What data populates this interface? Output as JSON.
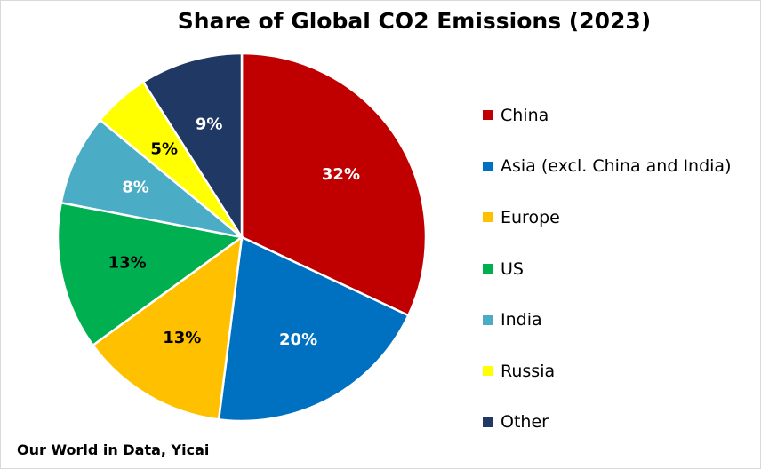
{
  "chart_data": {
    "type": "pie",
    "title": "Share of Global CO2 Emissions (2023)",
    "source": "Our World in Data, Yicai",
    "legend_position": "right",
    "slices": [
      {
        "label": "China",
        "value": 32,
        "display": "32%",
        "color": "#C00000",
        "label_color": "#ffffff"
      },
      {
        "label": "Asia (excl. China and India)",
        "value": 20,
        "display": "20%",
        "color": "#0070C0",
        "label_color": "#ffffff"
      },
      {
        "label": "Europe",
        "value": 13,
        "display": "13%",
        "color": "#FFC000",
        "label_color": "#000000"
      },
      {
        "label": "US",
        "value": 13,
        "display": "13%",
        "color": "#00B050",
        "label_color": "#000000"
      },
      {
        "label": "India",
        "value": 8,
        "display": "8%",
        "color": "#4BACC6",
        "label_color": "#ffffff"
      },
      {
        "label": "Russia",
        "value": 5,
        "display": "5%",
        "color": "#FFFF00",
        "label_color": "#000000"
      },
      {
        "label": "Other",
        "value": 9,
        "display": "9%",
        "color": "#1F3864",
        "label_color": "#ffffff"
      }
    ]
  }
}
